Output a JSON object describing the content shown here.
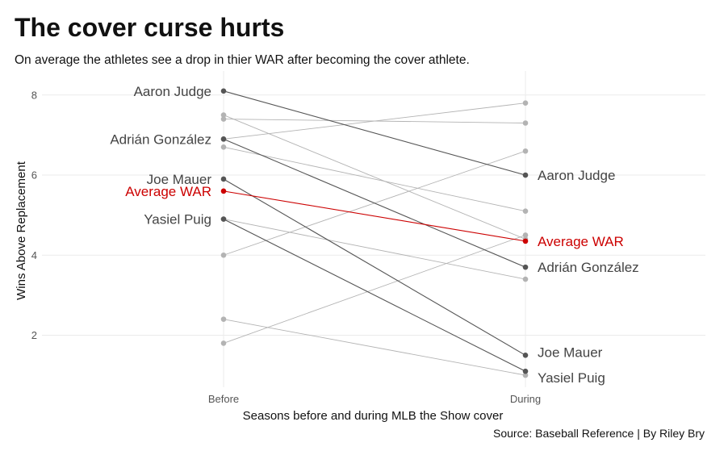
{
  "title": "The cover curse hurts",
  "subtitle": "On average the athletes see a drop in thier WAR after becoming the cover athlete.",
  "caption": "Source: Baseball Reference | By Riley Bry",
  "colors": {
    "highlight": "#555555",
    "other": "#b3b3b3",
    "average": "#cc0000",
    "grid": "#ebebeb"
  },
  "chart_data": {
    "type": "line",
    "categories": [
      "Before",
      "During"
    ],
    "xlabel": "Seasons before and during MLB the Show cover",
    "ylabel": "Wins Above Replacement",
    "ylim": [
      0.7,
      8.6
    ],
    "yticks": [
      2,
      4,
      6,
      8
    ],
    "grid": true,
    "series": [
      {
        "name": "Aaron Judge",
        "values": [
          8.1,
          6.0
        ],
        "group": "highlight"
      },
      {
        "name": "Adrián González",
        "values": [
          6.9,
          3.7
        ],
        "group": "highlight"
      },
      {
        "name": "Joe Mauer",
        "values": [
          5.9,
          1.5
        ],
        "group": "highlight"
      },
      {
        "name": "Yasiel Puig",
        "values": [
          4.9,
          1.1
        ],
        "group": "highlight"
      },
      {
        "name": "Average WAR",
        "values": [
          5.6,
          4.35
        ],
        "group": "average"
      },
      {
        "values": [
          7.5,
          4.4
        ],
        "group": "other"
      },
      {
        "values": [
          7.4,
          7.3
        ],
        "group": "other"
      },
      {
        "values": [
          6.9,
          7.8
        ],
        "group": "other"
      },
      {
        "values": [
          6.7,
          5.1
        ],
        "group": "other"
      },
      {
        "values": [
          4.9,
          3.4
        ],
        "group": "other"
      },
      {
        "values": [
          4.0,
          6.6
        ],
        "group": "other"
      },
      {
        "values": [
          2.4,
          1.0
        ],
        "group": "other"
      },
      {
        "values": [
          1.8,
          4.5
        ],
        "group": "other"
      }
    ]
  }
}
